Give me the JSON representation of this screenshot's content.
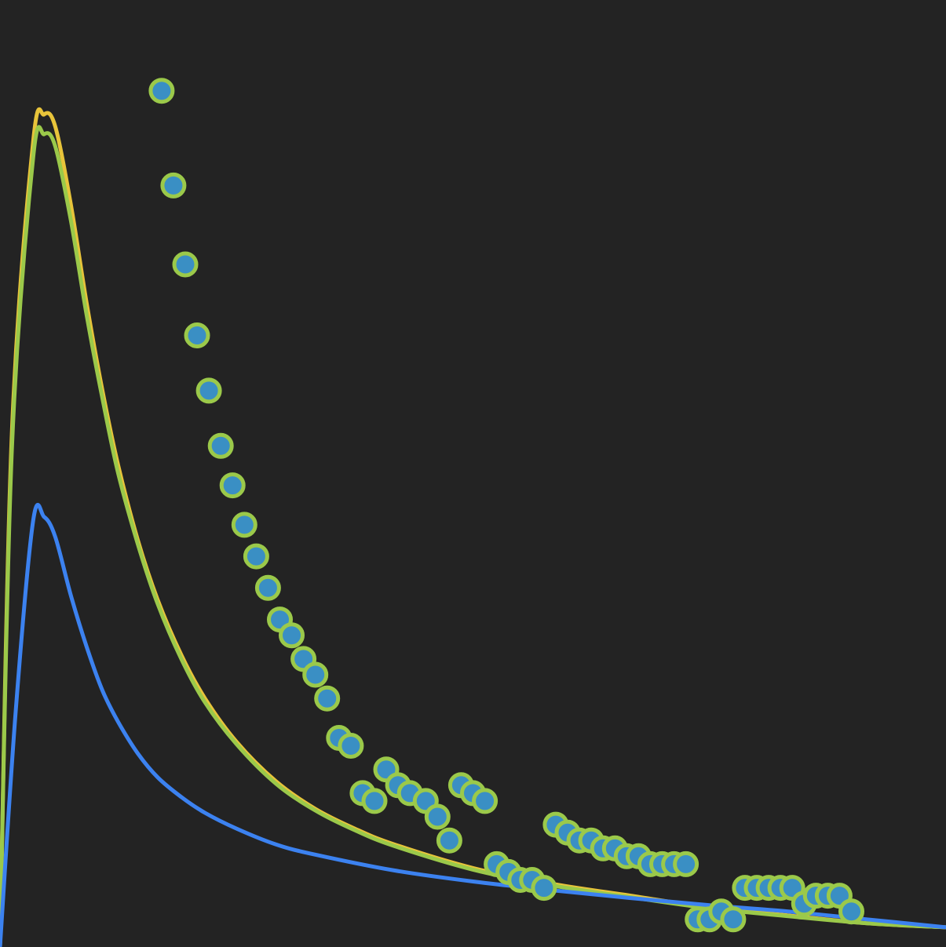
{
  "chart_data": {
    "type": "line",
    "title": "",
    "xlabel": "",
    "ylabel": "",
    "xlim": [
      0,
      120
    ],
    "ylim": [
      0,
      120
    ],
    "grid": false,
    "legend": "none",
    "colors": {
      "background": "#232323",
      "yellow": "#e8c43a",
      "green": "#9bc94a",
      "blue": "#3c82f0",
      "marker_fill": "#3a8fc4",
      "marker_edge": "#9bc94a"
    },
    "series": [
      {
        "type": "line",
        "color": "#e8c43a",
        "x": [
          0,
          1.5,
          4.2,
          5.6,
          7,
          9,
          11,
          13,
          15,
          17.5,
          20,
          23,
          26,
          30,
          35,
          40,
          45,
          50,
          60,
          70,
          80,
          90,
          100,
          110,
          120
        ],
        "y": [
          0,
          65,
          102,
          105.5,
          104,
          94,
          81.5,
          70.5,
          61,
          51.5,
          44,
          37,
          31.5,
          26,
          21,
          17.5,
          15,
          13,
          10,
          8,
          6.5,
          5,
          4,
          3,
          2.5
        ]
      },
      {
        "type": "line",
        "color": "#9bc94a",
        "x": [
          0,
          1.5,
          4.2,
          5.6,
          7,
          9,
          11,
          13,
          15,
          17.5,
          20,
          23,
          26,
          30,
          35,
          40,
          45,
          50,
          60,
          70,
          80,
          90,
          100,
          110,
          120
        ],
        "y": [
          0,
          63,
          100,
          103,
          101.5,
          92,
          80,
          69.5,
          60,
          51,
          43.5,
          36.5,
          31,
          25.7,
          20.7,
          17.3,
          14.8,
          12.8,
          9.8,
          7.8,
          6.3,
          4.9,
          3.9,
          3,
          2.5
        ]
      },
      {
        "type": "line",
        "color": "#3c82f0",
        "x": [
          0,
          2,
          4.2,
          5.6,
          7,
          9,
          11,
          13,
          15,
          17.5,
          20,
          23,
          26,
          30,
          35,
          40,
          50,
          60,
          70,
          80,
          90,
          100,
          110,
          120
        ],
        "y": [
          0,
          30,
          54,
          54.5,
          52,
          44.5,
          38,
          32.5,
          28.5,
          24.5,
          21.5,
          19,
          17,
          15,
          13,
          11.7,
          9.7,
          8.3,
          7.2,
          6.2,
          5.3,
          4.5,
          3.5,
          2.5
        ]
      },
      {
        "type": "scatter",
        "color": "#3a8fc4",
        "x": [
          20.5,
          22,
          23.5,
          25,
          26.5,
          28,
          29.5,
          31,
          32.5,
          34,
          35.5,
          37,
          38.5,
          40,
          41.5,
          43,
          44.5,
          46,
          47.5,
          49,
          50.5,
          52,
          54,
          55.5,
          57,
          58.5,
          60,
          61.5,
          63,
          64.5,
          66,
          67.5,
          69,
          70.5,
          72,
          73.5,
          75,
          76.5,
          78,
          79.5,
          81,
          82.5,
          84,
          85.5,
          87,
          88.5,
          90,
          91.5,
          93,
          94.5,
          96,
          97.5,
          99,
          100.5,
          102,
          103.5,
          105,
          106.5,
          108
        ],
        "y": [
          108.5,
          96.5,
          86.5,
          77.5,
          70.5,
          63.5,
          58.5,
          53.5,
          49.5,
          45.5,
          41.5,
          39.5,
          36.5,
          34.5,
          31.5,
          26.5,
          25.5,
          19.5,
          18.5,
          22.5,
          20.5,
          19.5,
          18.5,
          16.5,
          13.5,
          20.5,
          19.5,
          18.5,
          10.5,
          9.5,
          8.5,
          8.5,
          7.5,
          15.5,
          14.5,
          13.5,
          13.5,
          12.5,
          12.5,
          11.5,
          11.5,
          10.5,
          10.5,
          10.5,
          10.5,
          3.5,
          3.5,
          4.5,
          3.5,
          7.5,
          7.5,
          7.5,
          7.5,
          7.5,
          5.5,
          6.5,
          6.5,
          6.5,
          4.5
        ]
      }
    ]
  }
}
